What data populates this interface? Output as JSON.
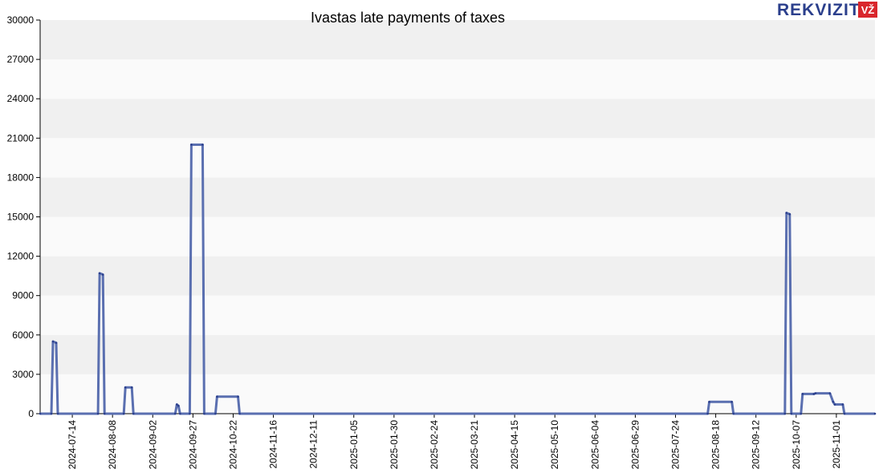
{
  "logo": {
    "text": "REKVIZITAI",
    "badge": "VŽ",
    "badge_color": "#d9262c",
    "text_color": "#2b3f8c"
  },
  "colors": {
    "line": "#5a6fb0",
    "band": "#f0f0f0",
    "axis": "#000000"
  },
  "chart_data": {
    "type": "line",
    "title": "Ivastas late payments of taxes",
    "xlabel": "",
    "ylabel": "",
    "ylim": [
      0,
      30000
    ],
    "y_ticks": [
      "0",
      "3000",
      "6000",
      "9000",
      "12000",
      "15000",
      "18000",
      "21000",
      "24000",
      "27000",
      "30000"
    ],
    "x_range": [
      "2024-06-24",
      "2025-11-25"
    ],
    "x_ticks": [
      "2024-07-14",
      "2024-08-08",
      "2024-09-02",
      "2024-09-27",
      "2024-10-22",
      "2024-11-16",
      "2024-12-11",
      "2025-01-05",
      "2025-01-30",
      "2025-02-24",
      "2025-03-21",
      "2025-04-15",
      "2025-05-10",
      "2025-06-04",
      "2025-06-29",
      "2025-07-24",
      "2025-08-18",
      "2025-09-12",
      "2025-10-07",
      "2025-11-01"
    ],
    "grid": "horizontal bands",
    "legend": "none",
    "series": [
      {
        "points": [
          [
            "2024-06-24",
            0
          ],
          [
            "2024-07-01",
            0
          ],
          [
            "2024-07-02",
            5500
          ],
          [
            "2024-07-04",
            5400
          ],
          [
            "2024-07-05",
            0
          ],
          [
            "2024-07-30",
            0
          ],
          [
            "2024-07-31",
            10700
          ],
          [
            "2024-08-02",
            10600
          ],
          [
            "2024-08-03",
            0
          ],
          [
            "2024-08-15",
            0
          ],
          [
            "2024-08-16",
            2000
          ],
          [
            "2024-08-20",
            2000
          ],
          [
            "2024-08-21",
            0
          ],
          [
            "2024-09-16",
            0
          ],
          [
            "2024-09-17",
            700
          ],
          [
            "2024-09-18",
            600
          ],
          [
            "2024-09-19",
            0
          ],
          [
            "2024-09-25",
            0
          ],
          [
            "2024-09-26",
            20500
          ],
          [
            "2024-10-03",
            20500
          ],
          [
            "2024-10-04",
            0
          ],
          [
            "2024-10-11",
            0
          ],
          [
            "2024-10-12",
            1300
          ],
          [
            "2024-10-25",
            1300
          ],
          [
            "2024-10-26",
            0
          ],
          [
            "2025-08-13",
            0
          ],
          [
            "2025-08-14",
            900
          ],
          [
            "2025-08-28",
            900
          ],
          [
            "2025-08-29",
            0
          ],
          [
            "2025-09-30",
            0
          ],
          [
            "2025-10-01",
            15300
          ],
          [
            "2025-10-03",
            15200
          ],
          [
            "2025-10-04",
            0
          ],
          [
            "2025-10-10",
            0
          ],
          [
            "2025-10-11",
            1500
          ],
          [
            "2025-10-18",
            1500
          ],
          [
            "2025-10-19",
            1550
          ],
          [
            "2025-10-28",
            1550
          ],
          [
            "2025-10-30",
            900
          ],
          [
            "2025-10-31",
            700
          ],
          [
            "2025-11-05",
            700
          ],
          [
            "2025-11-06",
            0
          ],
          [
            "2025-11-25",
            0
          ]
        ]
      }
    ]
  }
}
